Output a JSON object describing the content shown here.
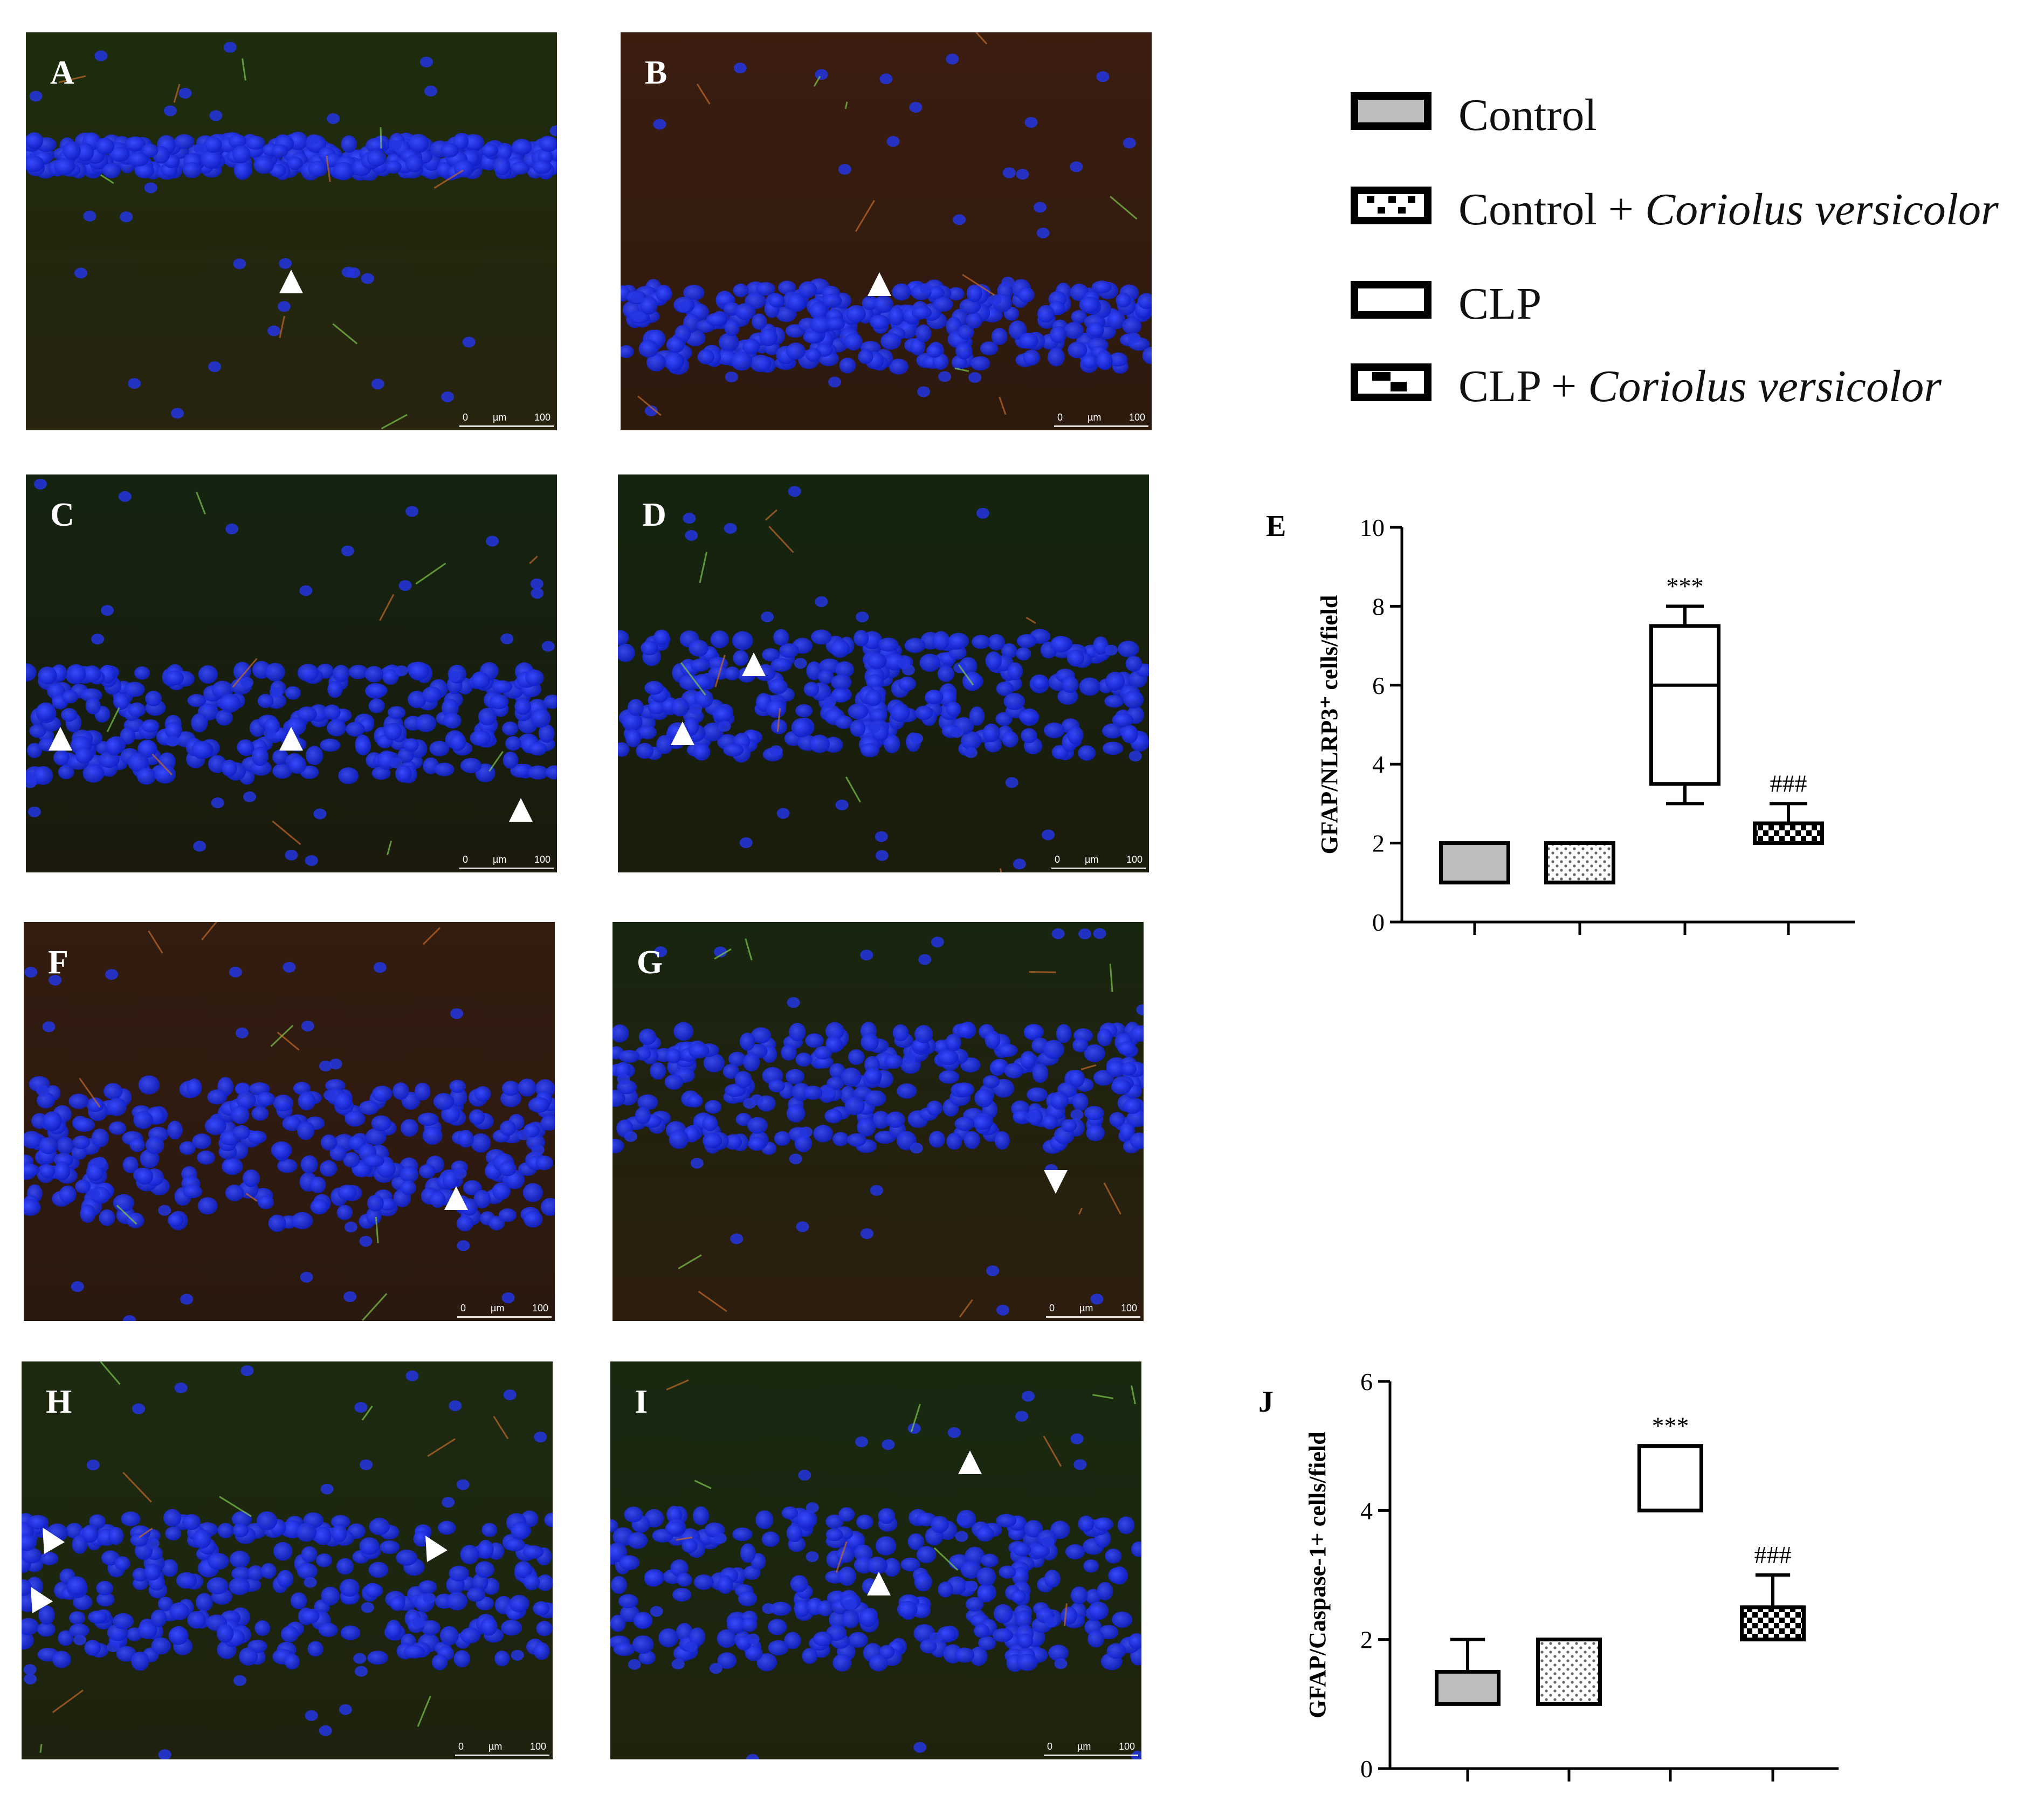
{
  "panels": [
    {
      "label": "A",
      "scale": [
        "0",
        "µm",
        "100"
      ]
    },
    {
      "label": "B",
      "scale": [
        "0",
        "µm",
        "100"
      ]
    },
    {
      "label": "C",
      "scale": [
        "0",
        "µm",
        "100"
      ]
    },
    {
      "label": "D",
      "scale": [
        "0",
        "µm",
        "100"
      ]
    },
    {
      "label": "F",
      "scale": [
        "0",
        "µm",
        "100"
      ]
    },
    {
      "label": "G",
      "scale": [
        "0",
        "µm",
        "100"
      ]
    },
    {
      "label": "H",
      "scale": [
        "0",
        "µm",
        "100"
      ]
    },
    {
      "label": "I",
      "scale": [
        "0",
        "µm",
        "100"
      ]
    }
  ],
  "legend": [
    {
      "text": "Control",
      "italic": "",
      "fill": "#bdbdbd",
      "pattern": "solid"
    },
    {
      "text": "Control + ",
      "italic": "Coriolus versicolor",
      "fill": "#ffffff",
      "pattern": "dots"
    },
    {
      "text": "CLP",
      "italic": "",
      "fill": "#ffffff",
      "pattern": "none"
    },
    {
      "text": "CLP + ",
      "italic": "Coriolus versicolor",
      "fill": "#ffffff",
      "pattern": "checker"
    }
  ],
  "chart_data": [
    {
      "panel_label": "E",
      "type": "box",
      "ylabel": "GFAP/NLRP3⁺ cells/field",
      "ylim": [
        0,
        10
      ],
      "yticks": [
        "0",
        "2",
        "4",
        "6",
        "8",
        "10"
      ],
      "groups": [
        {
          "min": 1,
          "q1": 1,
          "median": 1,
          "q3": 2,
          "max": 2,
          "annotation": ""
        },
        {
          "min": 1,
          "q1": 1,
          "median": 1,
          "q3": 2,
          "max": 2,
          "annotation": ""
        },
        {
          "min": 3,
          "q1": 3.5,
          "median": 6,
          "q3": 7.5,
          "max": 8,
          "annotation": "***"
        },
        {
          "min": 2,
          "q1": 2,
          "median": 2,
          "q3": 2.5,
          "max": 3,
          "annotation": "###"
        }
      ]
    },
    {
      "panel_label": "J",
      "type": "box",
      "ylabel": "GFAP/Caspase-1+ cells/field",
      "ylim": [
        0,
        6
      ],
      "yticks": [
        "0",
        "2",
        "4",
        "6"
      ],
      "groups": [
        {
          "min": 1,
          "q1": 1,
          "median": 1,
          "q3": 1.5,
          "max": 2,
          "annotation": ""
        },
        {
          "min": 1,
          "q1": 1,
          "median": 1,
          "q3": 2,
          "max": 2,
          "annotation": ""
        },
        {
          "min": 4,
          "q1": 4,
          "median": 5,
          "q3": 5,
          "max": 5,
          "annotation": "***"
        },
        {
          "min": 2,
          "q1": 2,
          "median": 2,
          "q3": 2.5,
          "max": 3,
          "annotation": "###"
        }
      ]
    }
  ]
}
